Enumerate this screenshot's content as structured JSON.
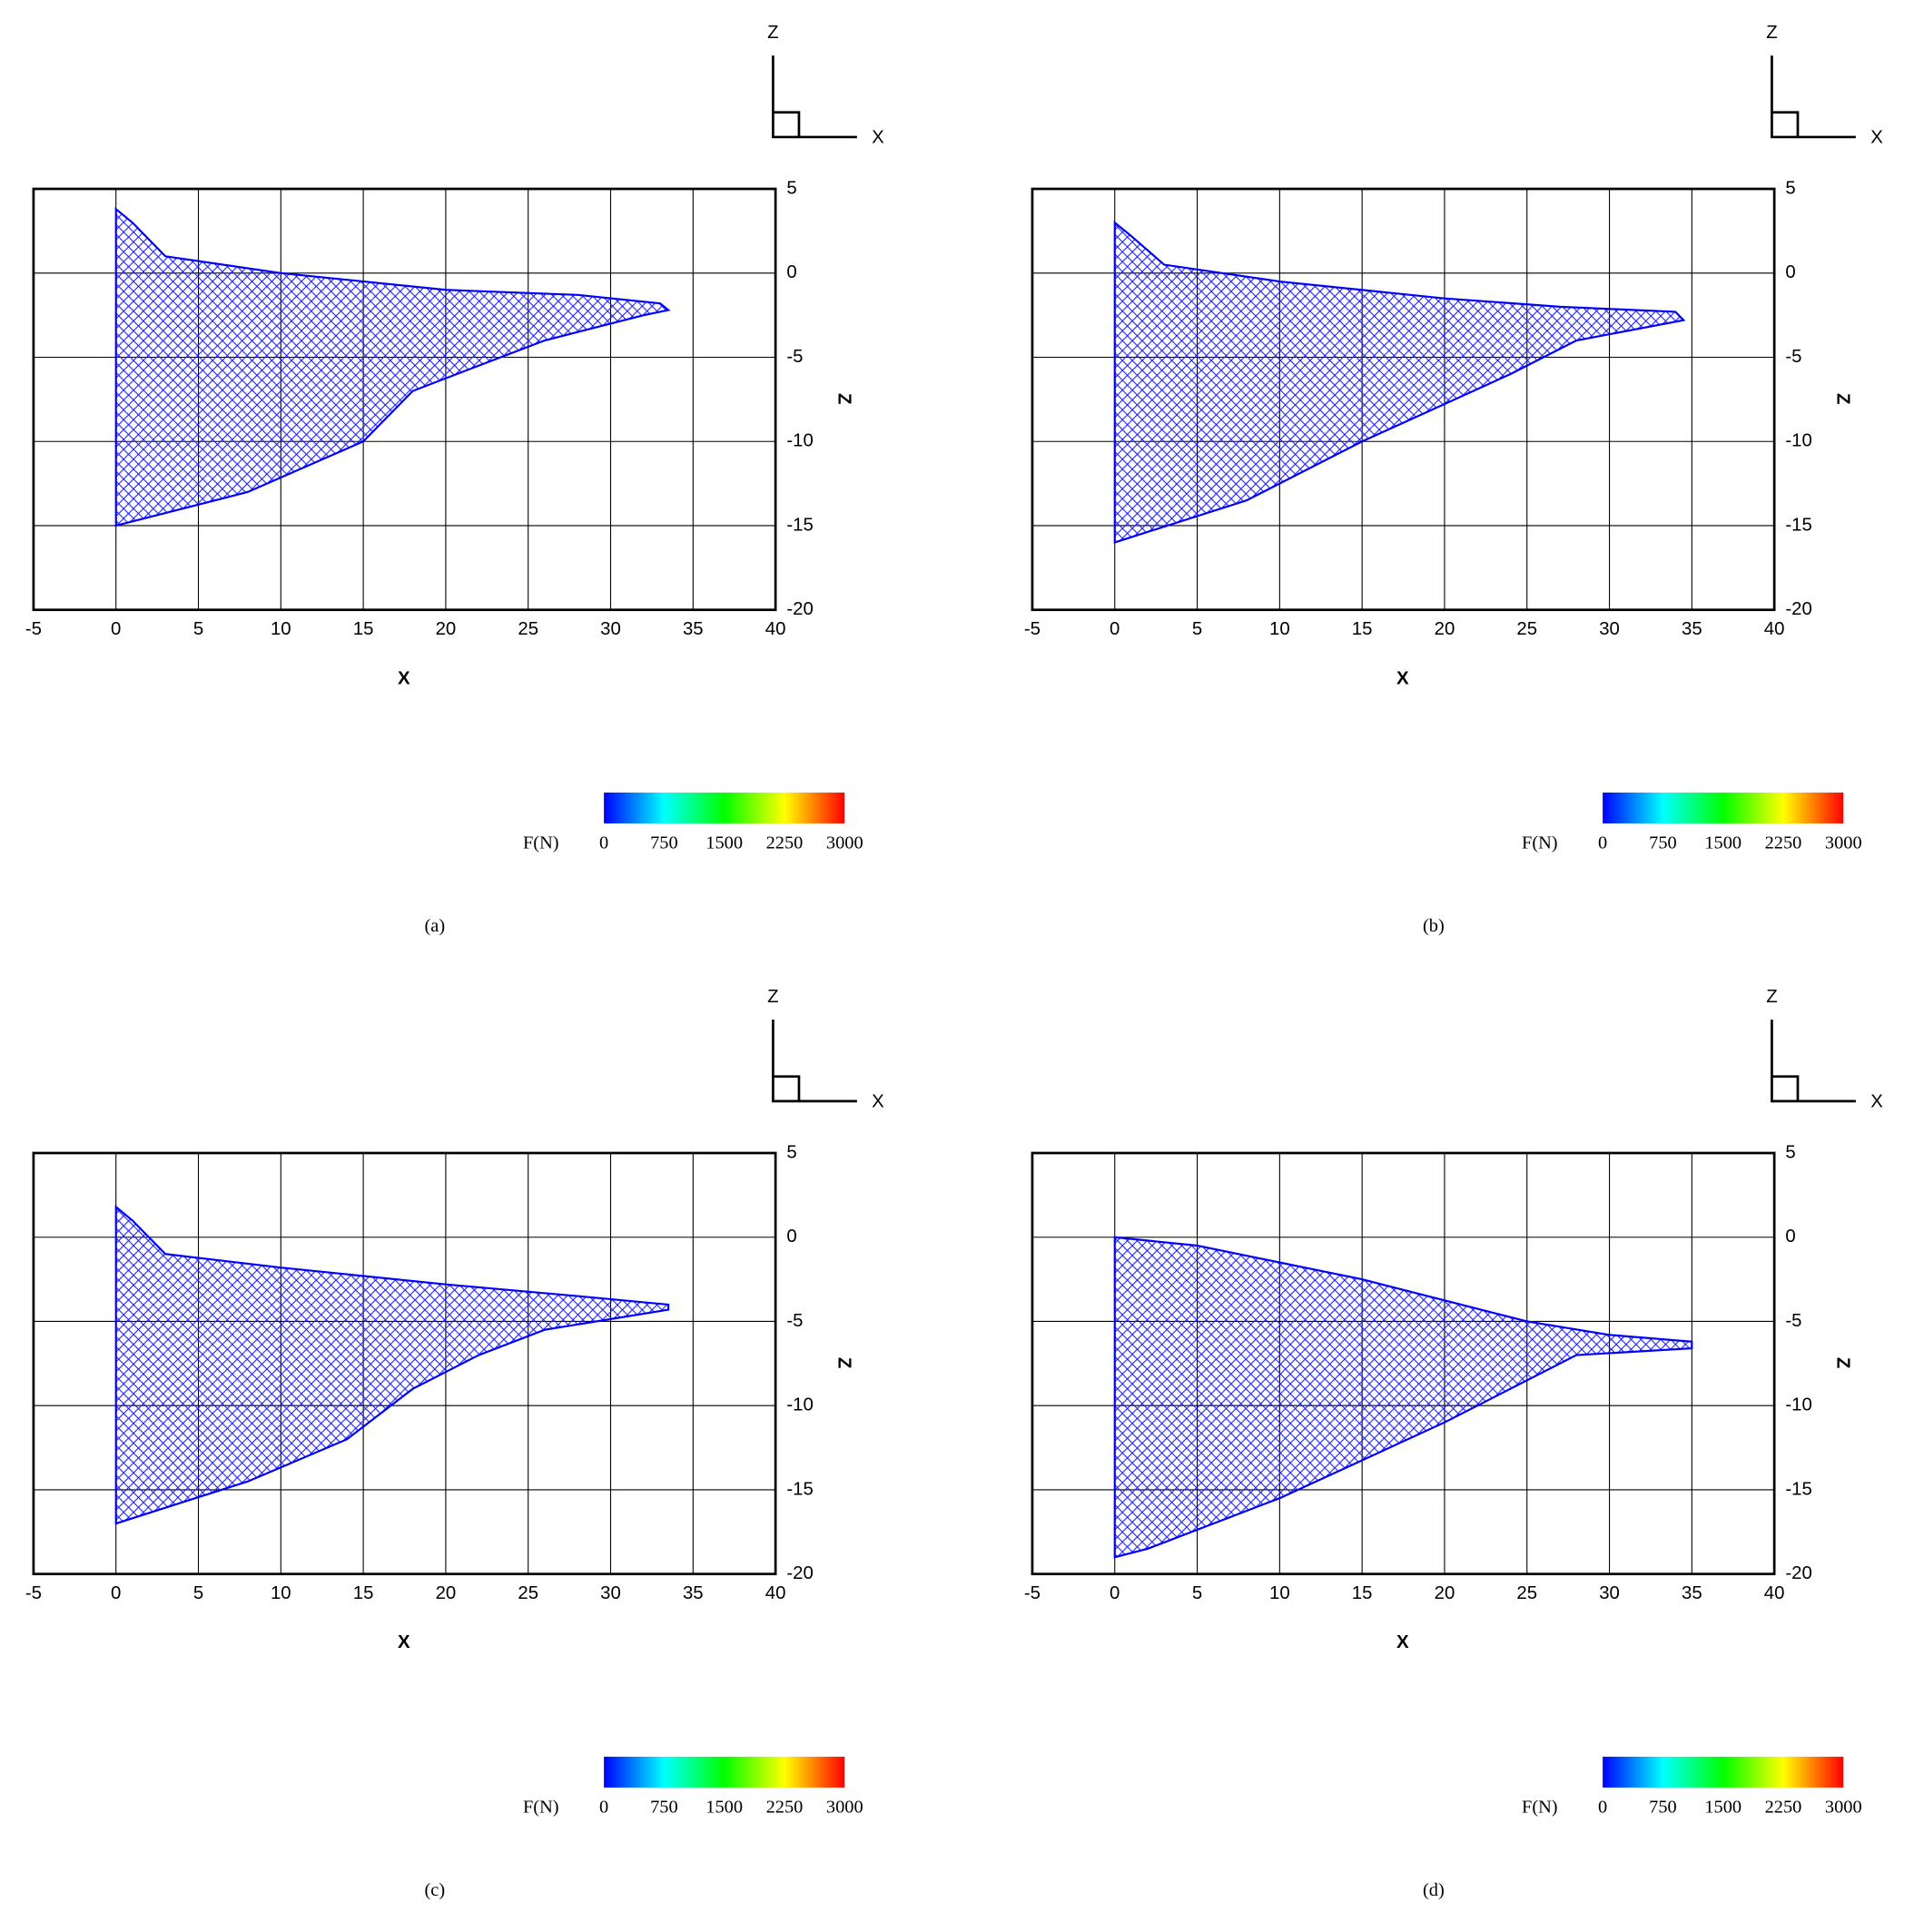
{
  "chart_data": [
    {
      "type": "area",
      "caption": "(a)",
      "xlabel": "X",
      "ylabel": "Z",
      "xlim": [
        -5,
        40
      ],
      "ylim": [
        -20,
        5
      ],
      "xticks": [
        -5,
        0,
        5,
        10,
        15,
        20,
        25,
        30,
        35,
        40
      ],
      "yticks": [
        5,
        0,
        -5,
        -10,
        -15,
        -20
      ],
      "grid": true,
      "color": "#0000ff",
      "x": [
        0,
        1,
        3,
        10,
        20,
        28,
        33,
        33.5,
        32,
        26,
        22,
        18,
        15,
        8,
        0,
        0
      ],
      "values": [
        3.8,
        3,
        1,
        0,
        -1,
        -1.3,
        -1.8,
        -2.2,
        -2.5,
        -4,
        -5.5,
        -7,
        -10,
        -13,
        -15,
        3.8
      ],
      "triad": {
        "horizontal": "X",
        "vertical": "Z"
      },
      "colorbar": {
        "label": "F(N)",
        "lim": [
          0,
          3000
        ],
        "ticks": [
          0,
          750,
          1500,
          2250,
          3000
        ],
        "colors": [
          "#0000ff",
          "#00ffff",
          "#00ff00",
          "#ffff00",
          "#ff0000"
        ]
      }
    },
    {
      "type": "area",
      "caption": "(b)",
      "xlabel": "X",
      "ylabel": "Z",
      "xlim": [
        -5,
        40
      ],
      "ylim": [
        -20,
        5
      ],
      "xticks": [
        -5,
        0,
        5,
        10,
        15,
        20,
        25,
        30,
        35,
        40
      ],
      "yticks": [
        5,
        0,
        -5,
        -10,
        -15,
        -20
      ],
      "grid": true,
      "color": "#0000ff",
      "x": [
        0,
        1,
        3,
        10,
        20,
        27,
        34,
        34.5,
        28,
        24,
        15,
        8,
        0,
        0
      ],
      "values": [
        3,
        2.2,
        0.5,
        -0.5,
        -1.5,
        -2,
        -2.3,
        -2.8,
        -4,
        -6,
        -10,
        -13.5,
        -16,
        3
      ],
      "triad": {
        "horizontal": "X",
        "vertical": "Z"
      },
      "colorbar": {
        "label": "F(N)",
        "lim": [
          0,
          3000
        ],
        "ticks": [
          0,
          750,
          1500,
          2250,
          3000
        ],
        "colors": [
          "#0000ff",
          "#00ffff",
          "#00ff00",
          "#ffff00",
          "#ff0000"
        ]
      }
    },
    {
      "type": "area",
      "caption": "(c)",
      "xlabel": "X",
      "ylabel": "Z",
      "xlim": [
        -5,
        40
      ],
      "ylim": [
        -20,
        5
      ],
      "xticks": [
        -5,
        0,
        5,
        10,
        15,
        20,
        25,
        30,
        35,
        40
      ],
      "yticks": [
        5,
        0,
        -5,
        -10,
        -15,
        -20
      ],
      "grid": true,
      "color": "#0000ff",
      "x": [
        0,
        1,
        3,
        10,
        20,
        28,
        33.5,
        33.5,
        26,
        22,
        18,
        14,
        8,
        0,
        0
      ],
      "values": [
        1.8,
        1,
        -1,
        -1.8,
        -2.8,
        -3.5,
        -4,
        -4.3,
        -5.5,
        -7,
        -9,
        -12,
        -14.5,
        -17,
        1.8
      ],
      "triad": {
        "horizontal": "X",
        "vertical": "Z"
      },
      "colorbar": {
        "label": "F(N)",
        "lim": [
          0,
          3000
        ],
        "ticks": [
          0,
          750,
          1500,
          2250,
          3000
        ],
        "colors": [
          "#0000ff",
          "#00ffff",
          "#00ff00",
          "#ffff00",
          "#ff0000"
        ]
      }
    },
    {
      "type": "area",
      "caption": "(d)",
      "xlabel": "X",
      "ylabel": "Z",
      "xlim": [
        -5,
        40
      ],
      "ylim": [
        -20,
        5
      ],
      "xticks": [
        -5,
        0,
        5,
        10,
        15,
        20,
        25,
        30,
        35,
        40
      ],
      "yticks": [
        5,
        0,
        -5,
        -10,
        -15,
        -20
      ],
      "grid": true,
      "color": "#0000ff",
      "x": [
        0,
        5,
        15,
        25,
        30,
        35,
        35,
        28,
        20,
        10,
        2,
        0,
        0
      ],
      "values": [
        0,
        -0.5,
        -2.5,
        -5,
        -5.8,
        -6.2,
        -6.6,
        -7,
        -11,
        -15.5,
        -18.5,
        -19,
        0
      ],
      "triad": {
        "horizontal": "X",
        "vertical": "Z"
      },
      "colorbar": {
        "label": "F(N)",
        "lim": [
          0,
          3000
        ],
        "ticks": [
          0,
          750,
          1500,
          2250,
          3000
        ],
        "colors": [
          "#0000ff",
          "#00ffff",
          "#00ff00",
          "#ffff00",
          "#ff0000"
        ]
      }
    }
  ]
}
